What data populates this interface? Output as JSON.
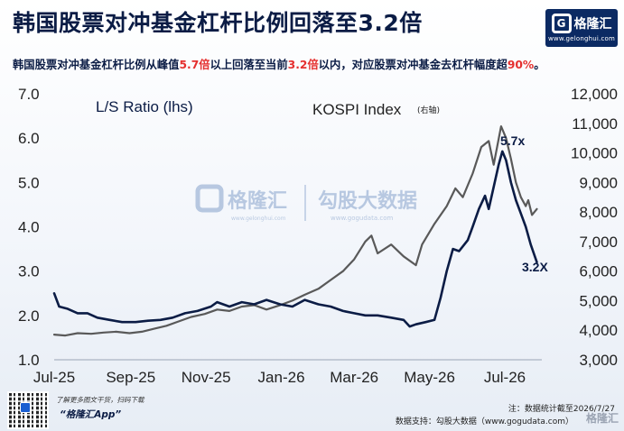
{
  "title": "韩国股票对冲基金杠杆比例回落至3.2倍",
  "subtitle": {
    "p1": "韩国股票对冲基金杠杆比例从峰值",
    "h1": "5.7倍",
    "p2": "以上回落至当前",
    "h2": "3.2倍",
    "p3": "以内，对应股票对冲基金去杠杆幅度超",
    "h3": "90%",
    "p4": "。"
  },
  "logo": {
    "name": "格隆汇",
    "url": "www.gelonghui.com"
  },
  "watermark": {
    "brand1": "格隆汇",
    "brand2": "勾股大数据",
    "url2": "www.gogudata.com",
    "url1": "www.gelonghui.com"
  },
  "footer": {
    "promo": "了解更多图文干货，扫码下载",
    "app": "“格隆汇App”",
    "note": "注：数据统计截至2026/7/27",
    "source": "数据支持：勾股大数据（www.gogudata.com）",
    "right_brand": "格隆汇"
  },
  "chart_data": {
    "type": "line",
    "x_ticks": [
      "Jul-25",
      "Sep-25",
      "Nov-25",
      "Jan-26",
      "Mar-26",
      "May-26",
      "Jul-26"
    ],
    "x_range": [
      "2025-07-01",
      "2026-07-31"
    ],
    "y_left": {
      "label": "L/S Ratio (lhs)",
      "range": [
        1.0,
        7.0
      ],
      "ticks": [
        "1.0",
        "2.0",
        "3.0",
        "4.0",
        "5.0",
        "6.0",
        "7.0"
      ]
    },
    "y_right": {
      "label": "KOSPI Index",
      "label_note": "(右轴)",
      "range": [
        3000,
        12000
      ],
      "ticks": [
        "3,000",
        "4,000",
        "5,000",
        "6,000",
        "7,000",
        "8,000",
        "9,000",
        "10,000",
        "11,000",
        "12,000"
      ]
    },
    "annotations": {
      "peak": "5.7x",
      "current": "3.2X"
    },
    "series": [
      {
        "name": "L/S Ratio (lhs)",
        "axis": "left",
        "color": "#0b1c45",
        "points": [
          [
            "2025-07-01",
            2.5
          ],
          [
            "2025-07-05",
            2.2
          ],
          [
            "2025-07-12",
            2.15
          ],
          [
            "2025-07-20",
            2.05
          ],
          [
            "2025-07-28",
            2.05
          ],
          [
            "2025-08-05",
            1.95
          ],
          [
            "2025-08-15",
            1.9
          ],
          [
            "2025-08-25",
            1.85
          ],
          [
            "2025-09-05",
            1.85
          ],
          [
            "2025-09-15",
            1.88
          ],
          [
            "2025-09-25",
            1.9
          ],
          [
            "2025-10-05",
            1.95
          ],
          [
            "2025-10-15",
            2.05
          ],
          [
            "2025-10-25",
            2.1
          ],
          [
            "2025-11-05",
            2.2
          ],
          [
            "2025-11-10",
            2.3
          ],
          [
            "2025-11-20",
            2.2
          ],
          [
            "2025-11-30",
            2.3
          ],
          [
            "2025-12-10",
            2.25
          ],
          [
            "2025-12-20",
            2.35
          ],
          [
            "2025-12-31",
            2.25
          ],
          [
            "2026-01-10",
            2.2
          ],
          [
            "2026-01-20",
            2.35
          ],
          [
            "2026-01-31",
            2.25
          ],
          [
            "2026-02-10",
            2.2
          ],
          [
            "2026-02-20",
            2.1
          ],
          [
            "2026-03-01",
            2.05
          ],
          [
            "2026-03-10",
            2.0
          ],
          [
            "2026-03-20",
            2.0
          ],
          [
            "2026-03-31",
            1.95
          ],
          [
            "2026-04-10",
            1.9
          ],
          [
            "2026-04-15",
            1.75
          ],
          [
            "2026-04-20",
            1.8
          ],
          [
            "2026-04-28",
            1.85
          ],
          [
            "2026-05-05",
            1.9
          ],
          [
            "2026-05-10",
            2.4
          ],
          [
            "2026-05-15",
            3.0
          ],
          [
            "2026-05-20",
            3.5
          ],
          [
            "2026-05-25",
            3.45
          ],
          [
            "2026-06-01",
            3.7
          ],
          [
            "2026-06-05",
            4.0
          ],
          [
            "2026-06-10",
            4.4
          ],
          [
            "2026-06-15",
            4.7
          ],
          [
            "2026-06-18",
            4.4
          ],
          [
            "2026-06-22",
            4.9
          ],
          [
            "2026-06-26",
            5.4
          ],
          [
            "2026-06-29",
            5.7
          ],
          [
            "2026-07-02",
            5.5
          ],
          [
            "2026-07-06",
            5.0
          ],
          [
            "2026-07-10",
            4.6
          ],
          [
            "2026-07-14",
            4.3
          ],
          [
            "2026-07-18",
            4.0
          ],
          [
            "2026-07-22",
            3.6
          ],
          [
            "2026-07-27",
            3.2
          ]
        ]
      },
      {
        "name": "KOSPI Index",
        "axis": "right",
        "color": "#595959",
        "points": [
          [
            "2025-07-01",
            3850
          ],
          [
            "2025-07-10",
            3820
          ],
          [
            "2025-07-20",
            3900
          ],
          [
            "2025-07-31",
            3880
          ],
          [
            "2025-08-10",
            3920
          ],
          [
            "2025-08-20",
            3950
          ],
          [
            "2025-08-31",
            3900
          ],
          [
            "2025-09-10",
            3950
          ],
          [
            "2025-09-20",
            4050
          ],
          [
            "2025-09-30",
            4150
          ],
          [
            "2025-10-10",
            4300
          ],
          [
            "2025-10-20",
            4450
          ],
          [
            "2025-10-31",
            4550
          ],
          [
            "2025-11-10",
            4700
          ],
          [
            "2025-11-20",
            4650
          ],
          [
            "2025-11-30",
            4800
          ],
          [
            "2025-12-10",
            4850
          ],
          [
            "2025-12-20",
            4700
          ],
          [
            "2025-12-31",
            4850
          ],
          [
            "2026-01-10",
            5000
          ],
          [
            "2026-01-20",
            5200
          ],
          [
            "2026-01-31",
            5400
          ],
          [
            "2026-02-10",
            5700
          ],
          [
            "2026-02-20",
            6000
          ],
          [
            "2026-03-01",
            6400
          ],
          [
            "2026-03-10",
            7000
          ],
          [
            "2026-03-15",
            7200
          ],
          [
            "2026-03-20",
            6600
          ],
          [
            "2026-03-31",
            6900
          ],
          [
            "2026-04-10",
            6500
          ],
          [
            "2026-04-20",
            6200
          ],
          [
            "2026-04-25",
            6900
          ],
          [
            "2026-05-05",
            7600
          ],
          [
            "2026-05-15",
            8200
          ],
          [
            "2026-05-22",
            8800
          ],
          [
            "2026-05-28",
            8500
          ],
          [
            "2026-06-05",
            9300
          ],
          [
            "2026-06-12",
            10200
          ],
          [
            "2026-06-18",
            10400
          ],
          [
            "2026-06-22",
            9600
          ],
          [
            "2026-06-28",
            10900
          ],
          [
            "2026-07-02",
            10500
          ],
          [
            "2026-07-06",
            9800
          ],
          [
            "2026-07-10",
            9000
          ],
          [
            "2026-07-14",
            8500
          ],
          [
            "2026-07-18",
            8200
          ],
          [
            "2026-07-20",
            8400
          ],
          [
            "2026-07-23",
            7900
          ],
          [
            "2026-07-27",
            8100
          ]
        ]
      }
    ]
  }
}
